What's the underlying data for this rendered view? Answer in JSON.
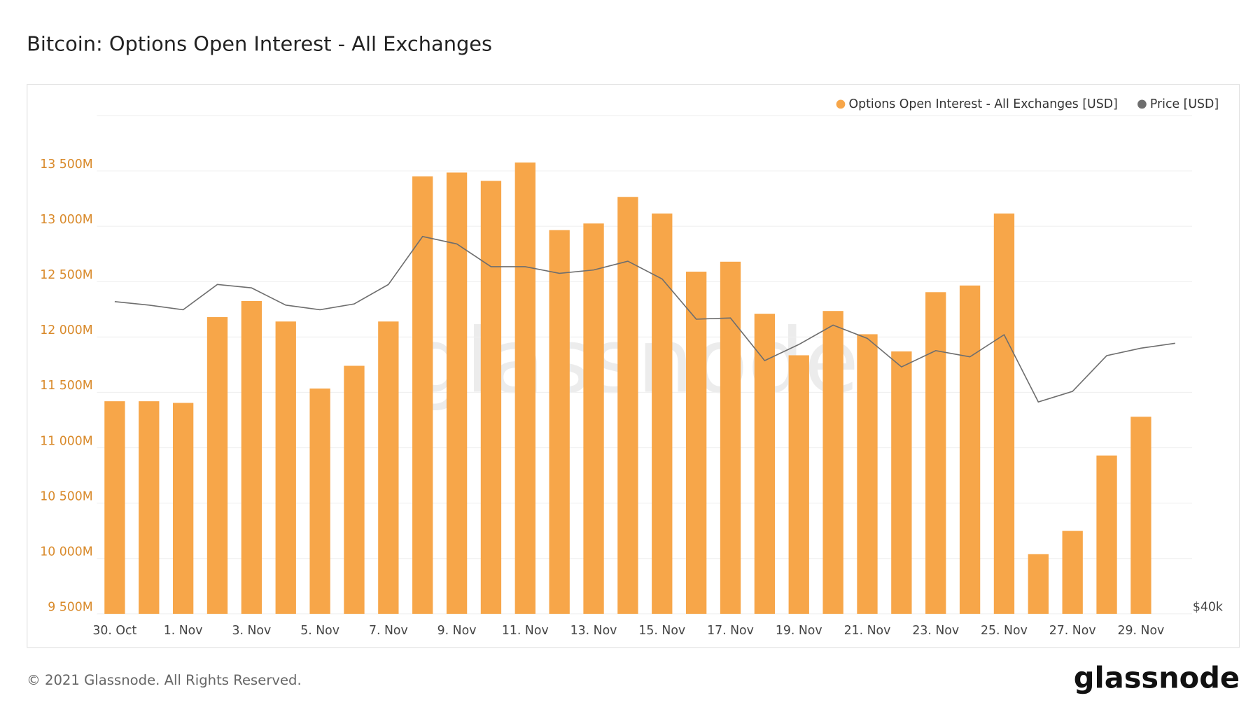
{
  "chart_data": {
    "type": "bar",
    "title": "Bitcoin: Options Open Interest - All Exchanges",
    "watermark": "glassnode",
    "footer": "© 2021 Glassnode. All Rights Reserved.",
    "logo": "glassnode",
    "categories": [
      "30. Oct",
      "31. Oct",
      "1. Nov",
      "2. Nov",
      "3. Nov",
      "4. Nov",
      "5. Nov",
      "6. Nov",
      "7. Nov",
      "8. Nov",
      "9. Nov",
      "10. Nov",
      "11. Nov",
      "12. Nov",
      "13. Nov",
      "14. Nov",
      "15. Nov",
      "16. Nov",
      "17. Nov",
      "18. Nov",
      "19. Nov",
      "20. Nov",
      "21. Nov",
      "22. Nov",
      "23. Nov",
      "24. Nov",
      "25. Nov",
      "26. Nov",
      "27. Nov",
      "28. Nov",
      "29. Nov",
      "30. Nov"
    ],
    "xticks": [
      "30. Oct",
      "1. Nov",
      "3. Nov",
      "5. Nov",
      "7. Nov",
      "9. Nov",
      "11. Nov",
      "13. Nov",
      "15. Nov",
      "17. Nov",
      "19. Nov",
      "21. Nov",
      "23. Nov",
      "25. Nov",
      "27. Nov",
      "29. Nov"
    ],
    "series": [
      {
        "name": "Options Open Interest - All Exchanges [USD]",
        "type": "bar",
        "color": "#f7a649",
        "values": [
          11420000000,
          11420000000,
          11405000000,
          12180000000,
          12325000000,
          12140000000,
          11535000000,
          11740000000,
          12140000000,
          13450000000,
          13485000000,
          13410000000,
          13575000000,
          12965000000,
          13025000000,
          13265000000,
          13115000000,
          12590000000,
          12680000000,
          12210000000,
          11835000000,
          12235000000,
          12025000000,
          11870000000,
          12405000000,
          12465000000,
          13115000000,
          10040000000,
          10250000000,
          10930000000,
          11280000000,
          null
        ]
      },
      {
        "name": "Price [USD]",
        "type": "line",
        "axis": "y2",
        "color": "#6e6e6e",
        "values": [
          61900,
          61600,
          61200,
          63400,
          63100,
          61600,
          61200,
          61700,
          63400,
          67800,
          67100,
          65000,
          65000,
          64400,
          64700,
          65500,
          63900,
          60400,
          60500,
          57000,
          58300,
          59900,
          58800,
          56500,
          57800,
          57300,
          59100,
          53800,
          54600,
          57400,
          58000,
          58400
        ]
      }
    ],
    "ylim": [
      9500000000,
      14000000000
    ],
    "yticks": [
      {
        "value": 9500000000,
        "label": "9 500M"
      },
      {
        "value": 10000000000,
        "label": "10 000M"
      },
      {
        "value": 10500000000,
        "label": "10 500M"
      },
      {
        "value": 11000000000,
        "label": "11 000M"
      },
      {
        "value": 11500000000,
        "label": "11 500M"
      },
      {
        "value": 12000000000,
        "label": "12 000M"
      },
      {
        "value": 12500000000,
        "label": "12 500M"
      },
      {
        "value": 13000000000,
        "label": "13 000M"
      },
      {
        "value": 13500000000,
        "label": "13 500M"
      }
    ],
    "y2lim": [
      40000,
      80300
    ],
    "y2log": true,
    "y2ticks": [
      {
        "value": 40000,
        "label": "$40k"
      }
    ],
    "grid": true,
    "legend": "top-right"
  }
}
